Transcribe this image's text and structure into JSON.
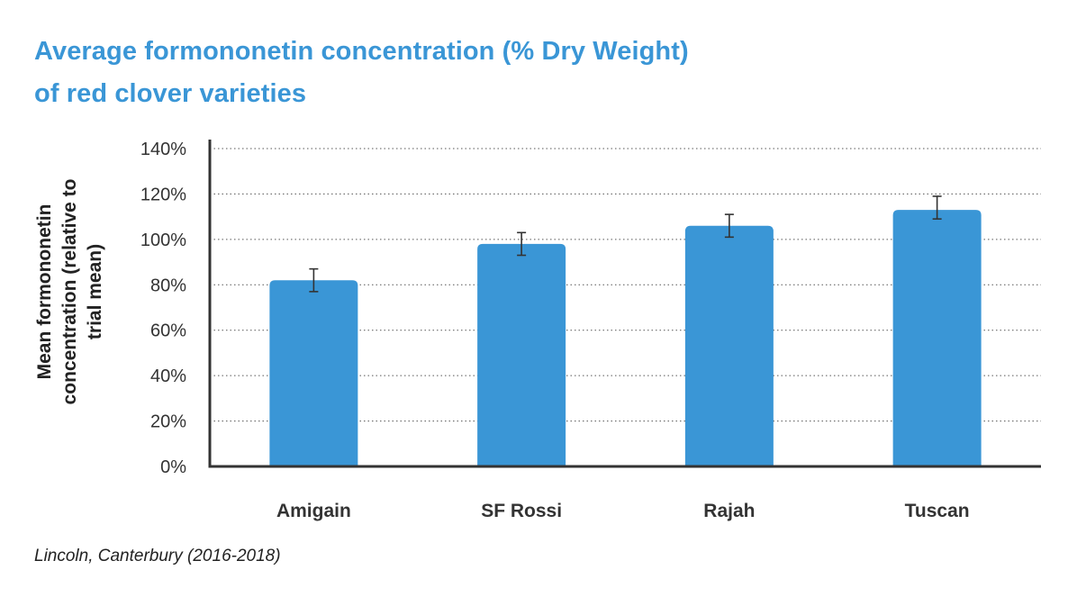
{
  "title_line1": "Average formononetin concentration (% Dry Weight)",
  "title_line2": "of red clover varieties",
  "footnote": "Lincoln, Canterbury (2016-2018)",
  "chart_data": {
    "type": "bar",
    "title": "Average formononetin concentration (% Dry Weight) of red clover varieties",
    "ylabel_lines": [
      "Mean formononetin",
      "concentration (relative to",
      "trial mean)"
    ],
    "xlabel": "",
    "categories": [
      "Amigain",
      "SF Rossi",
      "Rajah",
      "Tuscan"
    ],
    "values": [
      82,
      98,
      106,
      113
    ],
    "error_low": [
      77,
      93,
      101,
      109
    ],
    "error_high": [
      87,
      103,
      111,
      119
    ],
    "ylim": [
      0,
      140
    ],
    "yticks": [
      0,
      20,
      40,
      60,
      80,
      100,
      120,
      140
    ],
    "ytick_labels": [
      "0%",
      "20%",
      "40%",
      "60%",
      "80%",
      "100%",
      "120%",
      "140%"
    ],
    "grid": true,
    "grid_style": "dotted",
    "bar_color": "#3a96d6",
    "error_color": "#333333"
  }
}
